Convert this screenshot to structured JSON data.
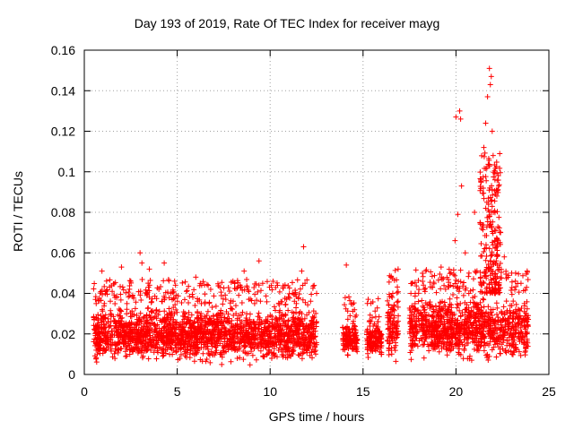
{
  "chart_data": {
    "type": "scatter",
    "title": "Day 193 of 2019, Rate Of TEC Index for receiver mayg",
    "xlabel": "GPS time / hours",
    "ylabel": "ROTI / TECUs",
    "xlim": [
      0,
      25
    ],
    "ylim": [
      0,
      0.16
    ],
    "xticks": [
      0,
      5,
      10,
      15,
      20,
      25
    ],
    "yticks": [
      0,
      0.02,
      0.04,
      0.06,
      0.08,
      0.1,
      0.12,
      0.14,
      0.16
    ],
    "xtick_labels": [
      "0",
      "5",
      "10",
      "15",
      "20",
      "25"
    ],
    "ytick_labels": [
      "0",
      "0.02",
      "0.04",
      "0.06",
      "0.08",
      "0.1",
      "0.12",
      "0.14",
      "0.16"
    ],
    "grid": true,
    "marker": "+",
    "color": "#ff0000",
    "notable_points": [
      {
        "x": 0.6,
        "y": 0.037
      },
      {
        "x": 0.95,
        "y": 0.051
      },
      {
        "x": 1.5,
        "y": 0.041
      },
      {
        "x": 2.0,
        "y": 0.053
      },
      {
        "x": 2.5,
        "y": 0.046
      },
      {
        "x": 3.0,
        "y": 0.06
      },
      {
        "x": 3.1,
        "y": 0.055
      },
      {
        "x": 3.5,
        "y": 0.052
      },
      {
        "x": 4.3,
        "y": 0.055
      },
      {
        "x": 5.5,
        "y": 0.041
      },
      {
        "x": 6.0,
        "y": 0.048
      },
      {
        "x": 7.3,
        "y": 0.043
      },
      {
        "x": 8.0,
        "y": 0.046
      },
      {
        "x": 8.6,
        "y": 0.051
      },
      {
        "x": 9.4,
        "y": 0.056
      },
      {
        "x": 9.6,
        "y": 0.045
      },
      {
        "x": 10.4,
        "y": 0.044
      },
      {
        "x": 11.2,
        "y": 0.04
      },
      {
        "x": 11.7,
        "y": 0.051
      },
      {
        "x": 11.8,
        "y": 0.063
      },
      {
        "x": 12.5,
        "y": 0.04
      },
      {
        "x": 14.1,
        "y": 0.054
      },
      {
        "x": 14.3,
        "y": 0.029
      },
      {
        "x": 15.7,
        "y": 0.024
      },
      {
        "x": 16.5,
        "y": 0.048
      },
      {
        "x": 16.6,
        "y": 0.04
      },
      {
        "x": 17.8,
        "y": 0.035
      },
      {
        "x": 18.3,
        "y": 0.042
      },
      {
        "x": 19.2,
        "y": 0.053
      },
      {
        "x": 19.7,
        "y": 0.044
      },
      {
        "x": 19.95,
        "y": 0.066
      },
      {
        "x": 20.0,
        "y": 0.127
      },
      {
        "x": 20.2,
        "y": 0.13
      },
      {
        "x": 20.25,
        "y": 0.126
      },
      {
        "x": 20.3,
        "y": 0.093
      },
      {
        "x": 20.1,
        "y": 0.079
      },
      {
        "x": 20.5,
        "y": 0.06
      },
      {
        "x": 20.7,
        "y": 0.05
      },
      {
        "x": 21.0,
        "y": 0.08
      },
      {
        "x": 21.3,
        "y": 0.075
      },
      {
        "x": 21.5,
        "y": 0.112
      },
      {
        "x": 21.6,
        "y": 0.124
      },
      {
        "x": 21.7,
        "y": 0.137
      },
      {
        "x": 21.8,
        "y": 0.151
      },
      {
        "x": 21.85,
        "y": 0.143
      },
      {
        "x": 21.9,
        "y": 0.147
      },
      {
        "x": 21.95,
        "y": 0.12
      },
      {
        "x": 22.0,
        "y": 0.108
      },
      {
        "x": 22.1,
        "y": 0.096
      },
      {
        "x": 22.2,
        "y": 0.088
      },
      {
        "x": 22.4,
        "y": 0.07
      },
      {
        "x": 22.6,
        "y": 0.058
      },
      {
        "x": 23.0,
        "y": 0.05
      },
      {
        "x": 23.5,
        "y": 0.045
      },
      {
        "x": 23.8,
        "y": 0.043
      }
    ],
    "clusters": [
      {
        "x_start": 0.5,
        "x_end": 12.5,
        "y_min": 0.004,
        "y_max": 0.035
      },
      {
        "x_start": 13.9,
        "x_end": 14.7,
        "y_min": 0.008,
        "y_max": 0.027
      },
      {
        "x_start": 15.2,
        "x_end": 16.0,
        "y_min": 0.006,
        "y_max": 0.026
      },
      {
        "x_start": 16.3,
        "x_end": 16.9,
        "y_min": 0.003,
        "y_max": 0.04
      },
      {
        "x_start": 17.5,
        "x_end": 23.9,
        "y_min": 0.005,
        "y_max": 0.04
      }
    ]
  }
}
